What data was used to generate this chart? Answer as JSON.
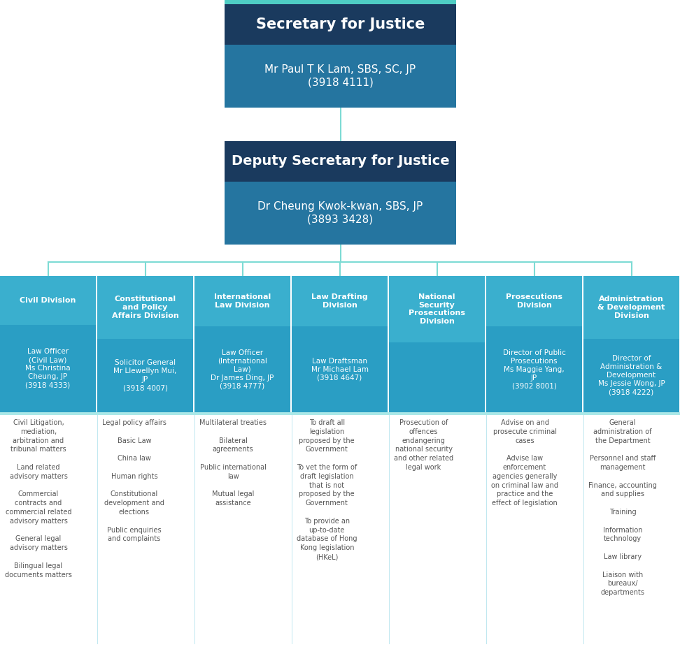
{
  "fig_width": 9.72,
  "fig_height": 9.26,
  "bg_color": "#ffffff",
  "teal_accent": "#4ecdc4",
  "dark_blue_header": "#1a3a5e",
  "medium_blue_body": "#2575a0",
  "light_blue_col": "#3aafce",
  "officer_blue": "#2a9ec4",
  "connector_color": "#7ddbd4",
  "text_white": "#ffffff",
  "text_dark": "#555555",
  "top_box": {
    "title": "Secretary for Justice",
    "body": "Mr Paul T K Lam, SBS, SC, JP\n(3918 4111)"
  },
  "mid_box": {
    "title": "Deputy Secretary for Justice",
    "body": "Dr Cheung Kwok-kwan, SBS, JP\n(3893 3428)"
  },
  "divisions": [
    {
      "title": "Civil Division",
      "officer_title": "Law Officer\n(Civil Law)\nMs Christina\nCheung, JP\n(3918 4333)",
      "duties": "Civil Litigation,\nmediation,\narbitration and\ntribunal matters\n\nLand related\nadvisory matters\n\nCommercial\ncontracts and\ncommercial related\nadvisory matters\n\nGeneral legal\nadvisory matters\n\nBilingual legal\ndocuments matters"
    },
    {
      "title": "Constitutional\nand Policy\nAffairs Division",
      "officer_title": "Solicitor General\nMr Llewellyn Mui,\nJP\n(3918 4007)",
      "duties": "Legal policy affairs\n\nBasic Law\n\nChina law\n\nHuman rights\n\nConstitutional\ndevelopment and\nelections\n\nPublic enquiries\nand complaints"
    },
    {
      "title": "International\nLaw Division",
      "officer_title": "Law Officer\n(International\nLaw)\nDr James Ding, JP\n(3918 4777)",
      "duties": "Multilateral treaties\n\nBilateral\nagreements\n\nPublic international\nlaw\n\nMutual legal\nassistance"
    },
    {
      "title": "Law Drafting\nDivision",
      "officer_title": "Law Draftsman\nMr Michael Lam\n(3918 4647)",
      "duties": "To draft all\nlegislation\nproposed by the\nGovernment\n\nTo vet the form of\ndraft legislation\nthat is not\nproposed by the\nGovernment\n\nTo provide an\nup-to-date\ndatabase of Hong\nKong legislation\n(HKeL)"
    },
    {
      "title": "National\nSecurity\nProsecutions\nDivision",
      "officer_title": "",
      "duties": "Prosecution of\noffences\nendangering\nnational security\nand other related\nlegal work"
    },
    {
      "title": "Prosecutions\nDivision",
      "officer_title": "Director of Public\nProsecutions\nMs Maggie Yang,\nJP\n(3902 8001)",
      "duties": "Advise on and\nprosecute criminal\ncases\n\nAdvise law\nenforcement\nagencies generally\non criminal law and\npractice and the\neffect of legislation"
    },
    {
      "title": "Administration\n& Development\nDivision",
      "officer_title": "Director of\nAdministration &\nDevelopment\nMs Jessie Wong, JP\n(3918 4222)",
      "duties": "General\nadministration of\nthe Department\n\nPersonnel and staff\nmanagement\n\nFinance, accounting\nand supplies\n\nTraining\n\nInformation\ntechnology\n\nLaw library\n\nLiaison with\nbureaux/\ndepartments"
    }
  ]
}
